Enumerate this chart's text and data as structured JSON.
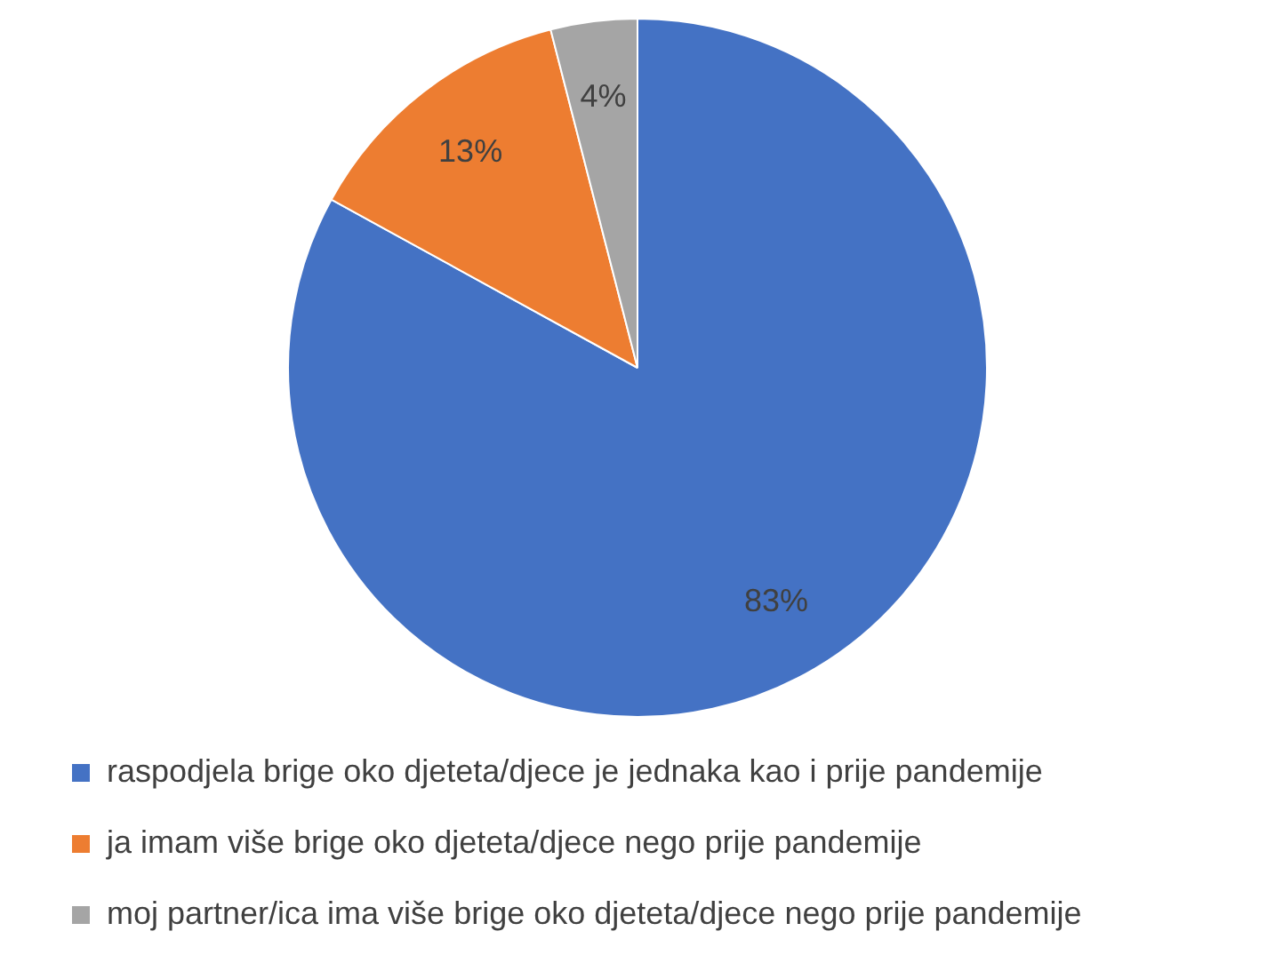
{
  "chart_data": {
    "type": "pie",
    "categories": [
      "raspodjela brige oko djeteta/djece je jednaka kao i prije pandemije",
      "ja imam više brige oko djeteta/djece nego prije pandemije",
      "moj partner/ica ima više brige oko djeteta/djece nego prije pandemije"
    ],
    "values": [
      83,
      13,
      4
    ],
    "value_labels": [
      "83%",
      "13%",
      "4%"
    ],
    "colors": [
      "#4472c4",
      "#ed7d31",
      "#a5a5a5"
    ],
    "legend": "bottom"
  }
}
